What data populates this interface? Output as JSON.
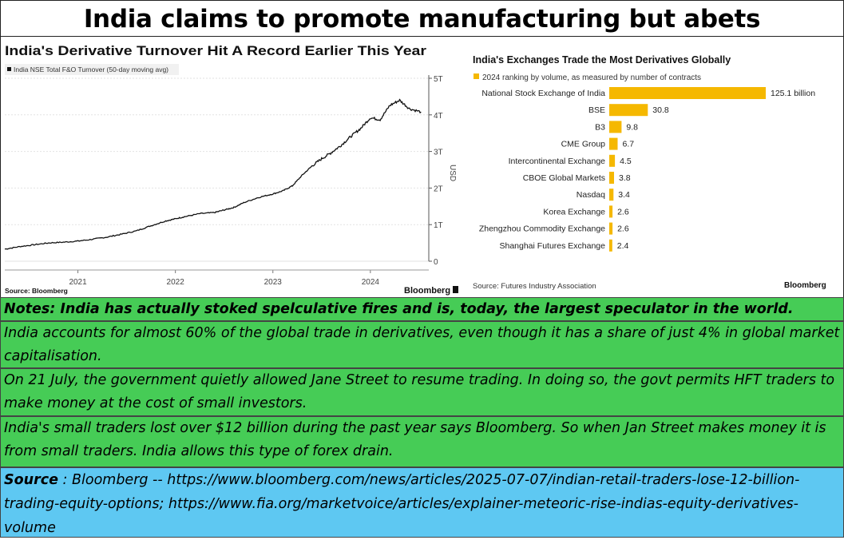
{
  "banner": {
    "title": "India claims to promote manufacturing but abets speculation"
  },
  "chart_data": [
    {
      "type": "line",
      "title": "India's Derivative Turnover Hit A Record Earlier This Year",
      "legend": "India NSE Total F&O Turnover (50-day moving avg)",
      "ylabel": "USD",
      "yticks": [
        "0",
        "1T",
        "2T",
        "3T",
        "4T",
        "5T"
      ],
      "xticks": [
        "2021",
        "2022",
        "2023",
        "2024"
      ],
      "ylim": [
        0,
        5
      ],
      "source": "Source: Bloomberg",
      "brand": "Bloomberg",
      "series": [
        {
          "values": [
            [
              2020.25,
              0.33
            ],
            [
              2020.4,
              0.4
            ],
            [
              2020.55,
              0.45
            ],
            [
              2020.7,
              0.5
            ],
            [
              2020.85,
              0.52
            ],
            [
              2021.0,
              0.55
            ],
            [
              2021.15,
              0.6
            ],
            [
              2021.3,
              0.66
            ],
            [
              2021.45,
              0.74
            ],
            [
              2021.6,
              0.83
            ],
            [
              2021.75,
              0.97
            ],
            [
              2021.9,
              1.1
            ],
            [
              2022.0,
              1.16
            ],
            [
              2022.1,
              1.22
            ],
            [
              2022.25,
              1.3
            ],
            [
              2022.4,
              1.33
            ],
            [
              2022.5,
              1.4
            ],
            [
              2022.6,
              1.47
            ],
            [
              2022.7,
              1.6
            ],
            [
              2022.85,
              1.74
            ],
            [
              2023.0,
              1.84
            ],
            [
              2023.1,
              1.92
            ],
            [
              2023.2,
              2.06
            ],
            [
              2023.3,
              2.35
            ],
            [
              2023.4,
              2.6
            ],
            [
              2023.5,
              2.8
            ],
            [
              2023.6,
              2.97
            ],
            [
              2023.7,
              3.17
            ],
            [
              2023.8,
              3.41
            ],
            [
              2023.9,
              3.63
            ],
            [
              2024.0,
              3.92
            ],
            [
              2024.1,
              3.87
            ],
            [
              2024.2,
              4.26
            ],
            [
              2024.3,
              4.4
            ],
            [
              2024.4,
              4.17
            ],
            [
              2024.52,
              4.08
            ]
          ]
        }
      ]
    },
    {
      "type": "bar",
      "title": "India's Exchanges Trade the Most Derivatives Globally",
      "legend": "2024 ranking by volume, as measured by number of contracts",
      "categories": [
        "National Stock Exchange of India",
        "BSE",
        "B3",
        "CME Group",
        "Intercontinental Exchange",
        "CBOE Global Markets",
        "Nasdaq",
        "Korea Exchange",
        "Zhengzhou Commodity Exchange",
        "Shanghai Futures Exchange"
      ],
      "values": [
        125.1,
        30.8,
        9.8,
        6.7,
        4.5,
        3.8,
        3.4,
        2.6,
        2.6,
        2.4
      ],
      "value_labels": [
        "125.1 billion",
        "30.8",
        "9.8",
        "6.7",
        "4.5",
        "3.8",
        "3.4",
        "2.6",
        "2.6",
        "2.4"
      ],
      "color": "#f5b800",
      "source": "Source: Futures Industry Association",
      "brand": "Bloomberg"
    }
  ],
  "notes": {
    "heading": "Notes: India has actually stoked spelculative fires and is, today, the largest speculator in the world.",
    "items": [
      "India accounts for almost 60% of the global trade in derivatives, even though it has a  share of just 4% in global market capitalisation.",
      "On 21 July, the government quietly allowed Jane Street to resume trading.  In doing so, the govt permits HFT traders to make money at the cost of  small investors.",
      "India's small traders lost over $12 billion during the past year says Bloomberg. So when Jan Street makes money it is from small traders.  India allows this type of forex drain."
    ]
  },
  "source": {
    "label": "Source",
    "text": " : Bloomberg -- https://www.bloomberg.com/news/articles/2025-07-07/indian-retail-traders-lose-12-billion-trading-equity-options; https://www.fia.org/marketvoice/articles/explainer-meteoric-rise-indias-equity-derivatives-volume"
  },
  "colors": {
    "notes_bg": "#46cc56",
    "source_bg": "#5ec8f2",
    "bar": "#f5b800"
  }
}
